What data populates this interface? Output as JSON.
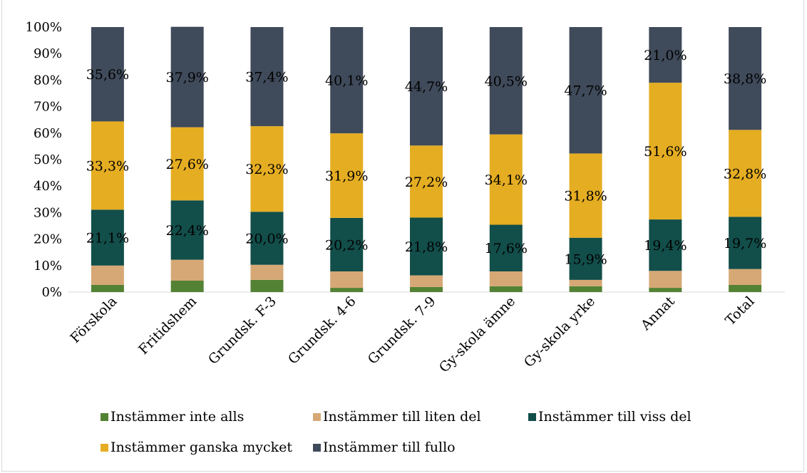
{
  "title_fragment": "",
  "chart_data": {
    "type": "bar",
    "stacked": true,
    "categories": [
      "Förskola",
      "Fritidshem",
      "Grundsk. F-3",
      "Grundsk. 4-6",
      "Grundsk. 7-9",
      "Gy-skola ämne",
      "Gy-skola yrke",
      "Annat",
      "Total"
    ],
    "series": [
      {
        "name": "Instämmer inte alls",
        "color": "#548235",
        "values": [
          2.7,
          4.3,
          4.6,
          1.6,
          1.9,
          2.2,
          2.2,
          1.6,
          2.7
        ],
        "labels": [
          "",
          "",
          "",
          "",
          "",
          "",
          "",
          "",
          ""
        ]
      },
      {
        "name": "Instämmer till liten del",
        "color": "#d6a875",
        "values": [
          7.3,
          7.9,
          5.7,
          6.2,
          4.4,
          5.6,
          2.4,
          6.4,
          6.0
        ],
        "labels": [
          "",
          "",
          "",
          "",
          "",
          "",
          "",
          "",
          ""
        ]
      },
      {
        "name": "Instämmer till viss del",
        "color": "#124e4a",
        "values": [
          21.1,
          22.4,
          20.0,
          20.2,
          21.8,
          17.6,
          15.9,
          19.4,
          19.7
        ],
        "labels": [
          "21,1%",
          "22,4%",
          "20,0%",
          "20,2%",
          "21,8%",
          "17,6%",
          "15,9%",
          "19,4%",
          "19,7%"
        ]
      },
      {
        "name": "Instämmer ganska mycket",
        "color": "#e5ad22",
        "values": [
          33.3,
          27.6,
          32.3,
          31.9,
          27.2,
          34.1,
          31.8,
          51.6,
          32.8
        ],
        "labels": [
          "33,3%",
          "27,6%",
          "32,3%",
          "31,9%",
          "27,2%",
          "34,1%",
          "31,8%",
          "51,6%",
          "32,8%"
        ]
      },
      {
        "name": "Instämmer till fullo",
        "color": "#3f4a5a",
        "values": [
          35.6,
          37.9,
          37.4,
          40.1,
          44.7,
          40.5,
          47.7,
          21.0,
          38.8
        ],
        "labels": [
          "35,6%",
          "37,9%",
          "37,4%",
          "40,1%",
          "44,7%",
          "40,5%",
          "47,7%",
          "21,0%",
          "38,8%"
        ]
      }
    ],
    "y_ticks": [
      "0%",
      "10%",
      "20%",
      "30%",
      "40%",
      "50%",
      "60%",
      "70%",
      "80%",
      "90%",
      "100%"
    ],
    "ylim": [
      0,
      100
    ],
    "legend_position": "bottom"
  }
}
